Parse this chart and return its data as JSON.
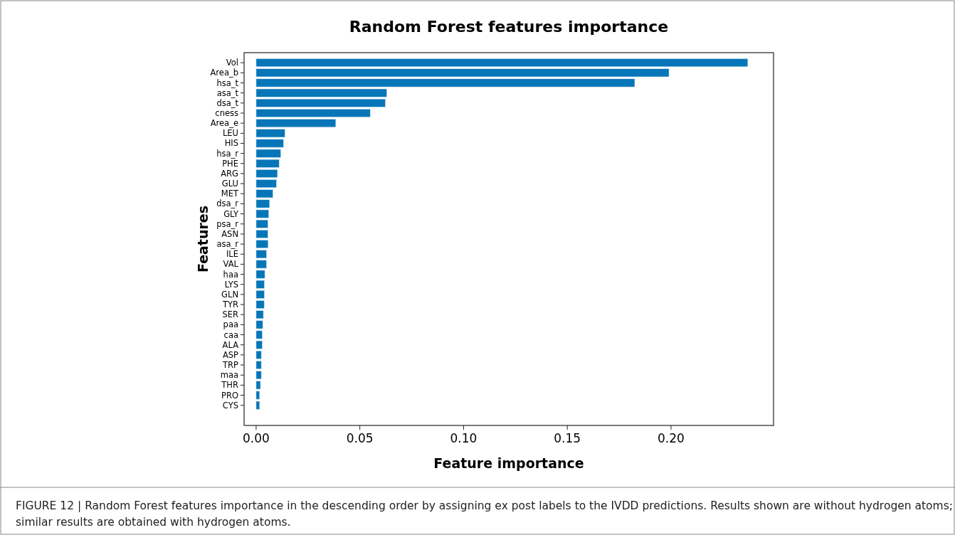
{
  "chart_data": {
    "type": "bar",
    "orientation": "horizontal",
    "title": "Random Forest features importance",
    "xlabel": "Feature importance",
    "ylabel": "Features",
    "categories": [
      "Vol",
      "Area_b",
      "hsa_t",
      "asa_t",
      "dsa_t",
      "cness",
      "Area_e",
      "LEU",
      "HIS",
      "hsa_r",
      "PHE",
      "ARG",
      "GLU",
      "MET",
      "dsa_r",
      "GLY",
      "psa_r",
      "ASN",
      "asa_r",
      "ILE",
      "VAL",
      "haa",
      "LYS",
      "GLN",
      "TYR",
      "SER",
      "paa",
      "caa",
      "ALA",
      "ASP",
      "TRP",
      "maa",
      "THR",
      "PRO",
      "CYS"
    ],
    "values": [
      0.237,
      0.199,
      0.1825,
      0.063,
      0.0623,
      0.055,
      0.0384,
      0.0139,
      0.0132,
      0.0119,
      0.0111,
      0.0103,
      0.0098,
      0.0081,
      0.0065,
      0.0061,
      0.0057,
      0.0057,
      0.0058,
      0.005,
      0.005,
      0.0042,
      0.004,
      0.004,
      0.0039,
      0.0035,
      0.0032,
      0.003,
      0.003,
      0.0025,
      0.0025,
      0.0025,
      0.0021,
      0.0017,
      0.0017
    ],
    "color": "#0776b8",
    "xlim": [
      -0.0058,
      0.2494
    ],
    "xticks": [
      {
        "value": 0,
        "label": "0.00"
      },
      {
        "value": 0.05,
        "label": "0.05"
      },
      {
        "value": 0.1,
        "label": "0.10"
      },
      {
        "value": 0.15,
        "label": "0.15"
      },
      {
        "value": 0.2,
        "label": "0.20"
      }
    ],
    "annotations": [
      "FIGURE 12 | Random Forest features importance in the descending order by assigning ex post labels to the IVDD predictions. Results shown are without hydrogen atoms; similar results are obtained with hydrogen atoms."
    ]
  }
}
